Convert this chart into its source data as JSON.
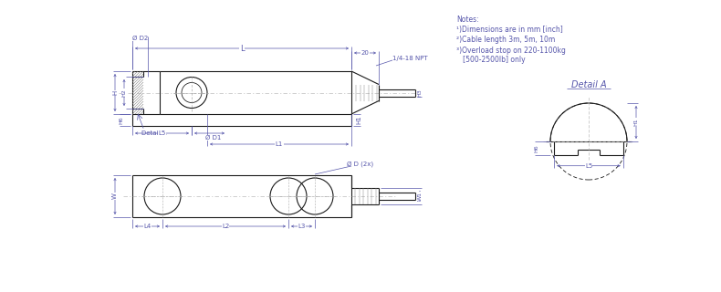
{
  "bg_color": "#ffffff",
  "line_color": "#1a1a1a",
  "dim_color": "#5555aa",
  "notes": [
    "Notes:",
    "¹)Dimensions are in mm [inch]",
    "²)Cable length 3m, 5m, 10m",
    "³)Overload stop on 220-1100kg",
    "   [500-2500lb] only"
  ],
  "detail_a_label": "Detail A"
}
